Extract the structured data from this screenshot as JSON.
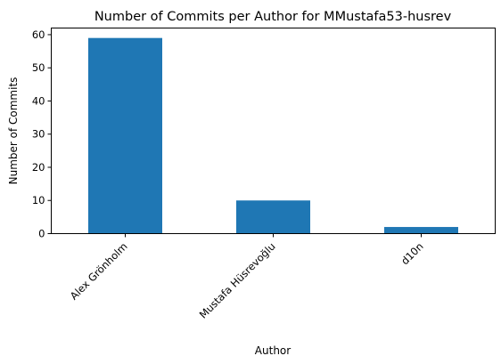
{
  "chart_data": {
    "type": "bar",
    "title": "Number of Commits per Author for MMustafa53-husrev",
    "xlabel": "Author",
    "ylabel": "Number of Commits",
    "categories": [
      "Alex Grönholm",
      "Mustafa Hüsrevoğlu",
      "d10n"
    ],
    "values": [
      59,
      10,
      2
    ],
    "ylim": [
      0,
      62
    ],
    "yticks": [
      "0",
      "10",
      "20",
      "30",
      "40",
      "50",
      "60"
    ],
    "grid": false,
    "legend": "none"
  },
  "colors": {
    "bar": "#1f77b4",
    "axis": "#000000",
    "background": "#ffffff"
  }
}
